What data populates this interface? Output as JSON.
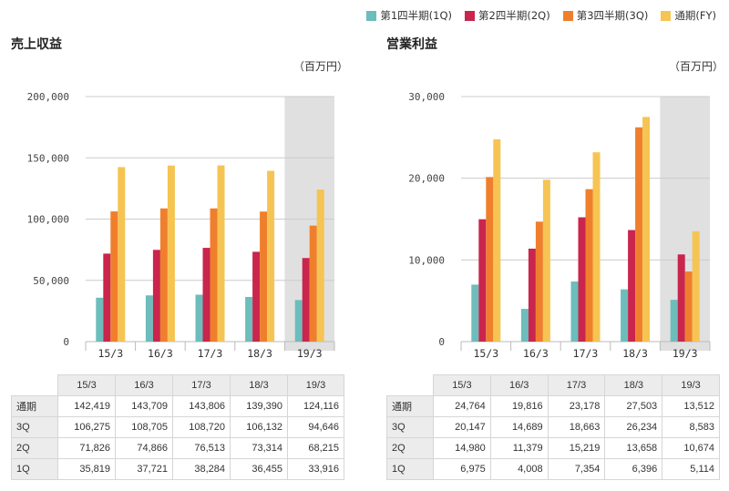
{
  "legend": {
    "items": [
      {
        "label": "第1四半期(1Q)",
        "color": "#6cbdbb"
      },
      {
        "label": "第2四半期(2Q)",
        "color": "#c9254d"
      },
      {
        "label": "第3四半期(3Q)",
        "color": "#ef7f2d"
      },
      {
        "label": "通期(FY)",
        "color": "#f6c453"
      }
    ]
  },
  "highlight_color": "#e0e0e0",
  "chart_data": [
    {
      "type": "bar",
      "title": "売上収益",
      "unit": "（百万円）",
      "categories": [
        "15/3",
        "16/3",
        "17/3",
        "18/3",
        "19/3"
      ],
      "highlighted_category": "19/3",
      "ylim": [
        0,
        200000
      ],
      "yticks": [
        0,
        50000,
        100000,
        150000,
        200000
      ],
      "ytick_labels": [
        "0",
        "50,000",
        "100,000",
        "150,000",
        "200,000"
      ],
      "grid": true,
      "series": [
        {
          "name": "1Q",
          "values": [
            35819,
            37721,
            38284,
            36455,
            33916
          ]
        },
        {
          "name": "2Q",
          "values": [
            71826,
            74866,
            76513,
            73314,
            68215
          ]
        },
        {
          "name": "3Q",
          "values": [
            106275,
            108705,
            108720,
            106132,
            94646
          ]
        },
        {
          "name": "FY",
          "values": [
            142419,
            143709,
            143806,
            139390,
            124116
          ]
        }
      ],
      "table": {
        "rows": [
          {
            "label": "通期",
            "cells": [
              "142,419",
              "143,709",
              "143,806",
              "139,390",
              "124,116"
            ]
          },
          {
            "label": "3Q",
            "cells": [
              "106,275",
              "108,705",
              "108,720",
              "106,132",
              "94,646"
            ]
          },
          {
            "label": "2Q",
            "cells": [
              "71,826",
              "74,866",
              "76,513",
              "73,314",
              "68,215"
            ]
          },
          {
            "label": "1Q",
            "cells": [
              "35,819",
              "37,721",
              "38,284",
              "36,455",
              "33,916"
            ]
          }
        ]
      }
    },
    {
      "type": "bar",
      "title": "営業利益",
      "unit": "（百万円）",
      "categories": [
        "15/3",
        "16/3",
        "17/3",
        "18/3",
        "19/3"
      ],
      "highlighted_category": "19/3",
      "ylim": [
        0,
        30000
      ],
      "yticks": [
        0,
        10000,
        20000,
        30000
      ],
      "ytick_labels": [
        "0",
        "10,000",
        "20,000",
        "30,000"
      ],
      "grid": true,
      "series": [
        {
          "name": "1Q",
          "values": [
            6975,
            4008,
            7354,
            6396,
            5114
          ]
        },
        {
          "name": "2Q",
          "values": [
            14980,
            11379,
            15219,
            13658,
            10674
          ]
        },
        {
          "name": "3Q",
          "values": [
            20147,
            14689,
            18663,
            26234,
            8583
          ]
        },
        {
          "name": "FY",
          "values": [
            24764,
            19816,
            23178,
            27503,
            13512
          ]
        }
      ],
      "table": {
        "rows": [
          {
            "label": "通期",
            "cells": [
              "24,764",
              "19,816",
              "23,178",
              "27,503",
              "13,512"
            ]
          },
          {
            "label": "3Q",
            "cells": [
              "20,147",
              "14,689",
              "18,663",
              "26,234",
              "8,583"
            ]
          },
          {
            "label": "2Q",
            "cells": [
              "14,980",
              "11,379",
              "15,219",
              "13,658",
              "10,674"
            ]
          },
          {
            "label": "1Q",
            "cells": [
              "6,975",
              "4,008",
              "7,354",
              "6,396",
              "5,114"
            ]
          }
        ]
      }
    }
  ]
}
